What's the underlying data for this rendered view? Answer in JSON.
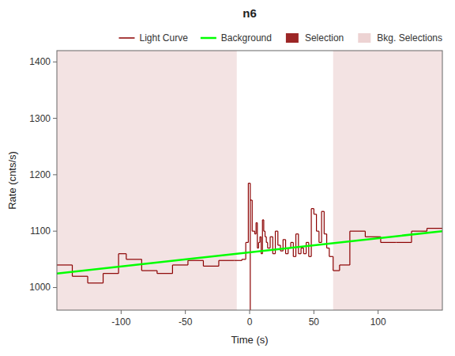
{
  "chart_data": {
    "type": "step",
    "title": "n6",
    "x_label": "Time (s)",
    "y_label": "Rate (cnts/s)",
    "xlim": [
      -150,
      150
    ],
    "ylim": [
      960,
      1420
    ],
    "xticks": [
      -100,
      -50,
      0,
      50,
      100
    ],
    "yticks": [
      1000,
      1100,
      1200,
      1300,
      1400
    ],
    "grid": false,
    "legend": "upper right",
    "series": [
      {
        "name": "Light Curve",
        "type": "step",
        "color": "#8B0000",
        "bins": [
          -150,
          -138,
          -126,
          -114,
          -102,
          -96,
          -84,
          -72,
          -60,
          -48,
          -36,
          -24,
          -12,
          -6,
          -3,
          -1,
          0.5,
          2,
          4,
          5,
          6,
          7,
          8,
          9,
          10,
          11,
          12,
          13,
          14,
          16,
          18,
          20,
          22,
          24,
          26,
          28,
          30,
          32,
          34,
          36,
          38,
          40,
          42,
          44,
          46,
          48,
          50,
          52,
          54,
          56,
          58,
          60,
          62,
          65,
          70,
          78,
          90,
          102,
          114,
          126,
          138,
          150
        ],
        "values": [
          1040,
          1020,
          1008,
          1025,
          1060,
          1050,
          1030,
          1025,
          1040,
          1048,
          1038,
          1048,
          1048,
          1050,
          1080,
          1185,
          1155,
          1100,
          1095,
          1115,
          1070,
          1080,
          1090,
          1060,
          1120,
          1100,
          1090,
          1080,
          1070,
          1090,
          1060,
          1100,
          1075,
          1065,
          1085,
          1060,
          1070,
          1080,
          1055,
          1095,
          1060,
          1070,
          1060,
          1080,
          1055,
          1140,
          1130,
          1100,
          1080,
          1135,
          1095,
          1070,
          1055,
          1030,
          1040,
          1100,
          1090,
          1080,
          1080,
          1100,
          1105
        ],
        "drop": {
          "x": 0.5,
          "y": [
            1155,
            960
          ]
        }
      },
      {
        "name": "Background",
        "type": "line",
        "color": "#00FF00",
        "x": [
          -150,
          150
        ],
        "values": [
          1025,
          1100
        ]
      },
      {
        "name": "Selection",
        "type": "patch",
        "color": "#8B0000"
      },
      {
        "name": "Bkg. Selections",
        "type": "span",
        "color": "#e8c8c8",
        "regions": [
          [
            -150,
            -10
          ],
          [
            65,
            150
          ]
        ]
      }
    ]
  }
}
